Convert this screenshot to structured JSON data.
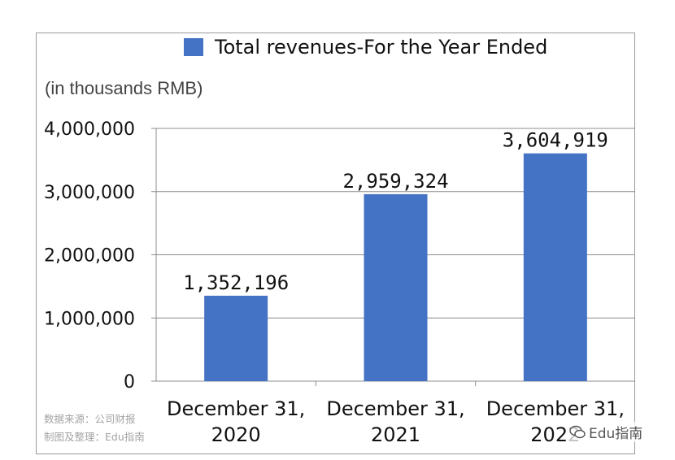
{
  "chart_data": {
    "type": "bar",
    "categories": [
      [
        "December 31,",
        "2020"
      ],
      [
        "December 31,",
        "2021"
      ],
      [
        "December 31,",
        "2022"
      ]
    ],
    "series": [
      {
        "name": "Total revenues-For the Year Ended",
        "values": [
          1352196,
          2959324,
          3604919
        ],
        "color": "#4472c4"
      }
    ],
    "data_labels": [
      "1,352,196",
      "2,959,324",
      "3,604,919"
    ],
    "ylabel": "(in thousands RMB)",
    "ylim": [
      0,
      4000000
    ],
    "yticks": [
      0,
      1000000,
      2000000,
      3000000,
      4000000
    ],
    "ytick_labels": [
      "0",
      "1,000,000",
      "2,000,000",
      "3,000,000",
      "4,000,000"
    ],
    "grid": true,
    "legend_position": "top"
  },
  "legend": {
    "label": "Total revenues-For the Year Ended",
    "color": "#4472c4"
  },
  "unit_label": "(in thousands RMB)",
  "source_note": {
    "line1": "数据来源：公司财报",
    "line2": "制图及整理：Edu指南"
  },
  "watermark": {
    "text": "Edu指南",
    "icon": "wechat-icon"
  }
}
